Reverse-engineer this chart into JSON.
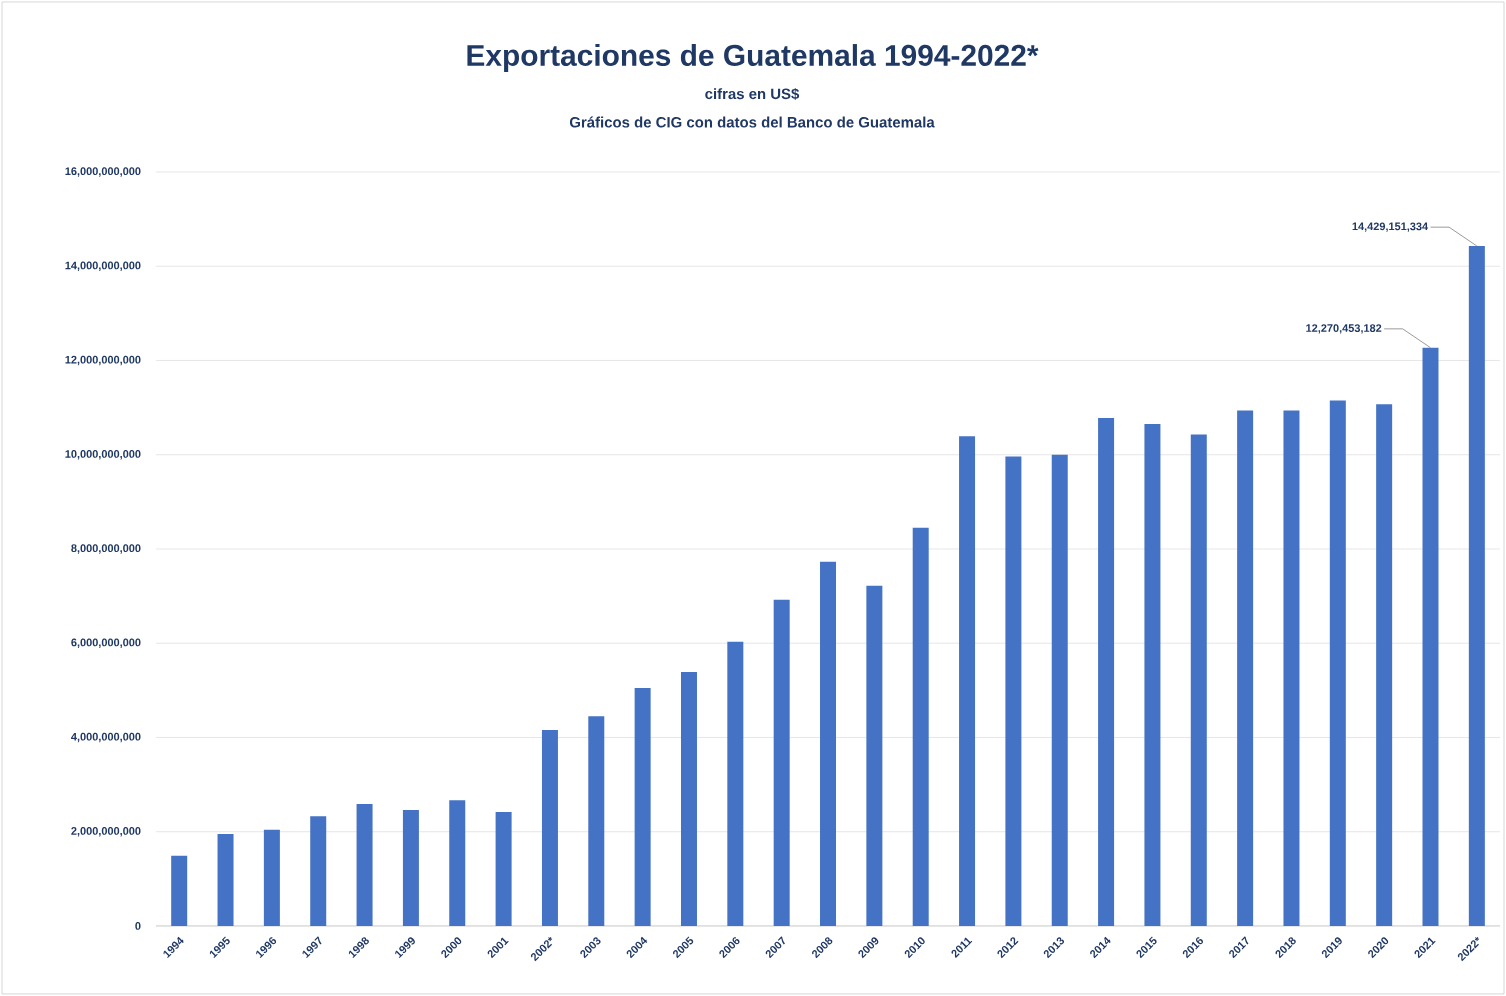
{
  "chart_data": {
    "type": "bar",
    "title": "Exportaciones de Guatemala 1994-2022*",
    "subtitle": "cifras en US$",
    "annotations": [
      "Gráficos de CIG con datos del Banco de Guatemala"
    ],
    "categories": [
      "1994",
      "1995",
      "1996",
      "1997",
      "1998",
      "1999",
      "2000",
      "2001",
      "2002*",
      "2003",
      "2004",
      "2005",
      "2006",
      "2007",
      "2008",
      "2009",
      "2010",
      "2011",
      "2012",
      "2013",
      "2014",
      "2015",
      "2016",
      "2017",
      "2018",
      "2019",
      "2020",
      "2021",
      "2022*"
    ],
    "values": [
      1490000000,
      1950000000,
      2040000000,
      2330000000,
      2590000000,
      2460000000,
      2670000000,
      2420000000,
      4160000000,
      4450000000,
      5050000000,
      5390000000,
      6030000000,
      6920000000,
      7730000000,
      7220000000,
      8450000000,
      10390000000,
      9960000000,
      10000000000,
      10780000000,
      10650000000,
      10430000000,
      10940000000,
      10940000000,
      11150000000,
      11070000000,
      12270453182,
      14429151334
    ],
    "value_labels": [
      null,
      null,
      null,
      null,
      null,
      null,
      null,
      null,
      null,
      null,
      null,
      null,
      null,
      null,
      null,
      null,
      null,
      null,
      null,
      null,
      null,
      null,
      null,
      null,
      null,
      null,
      null,
      "12,270,453,182",
      "14,429,151,334"
    ],
    "color": "#4472c4",
    "ylim": [
      0,
      16000000000
    ],
    "yticks": [
      {
        "value": 0,
        "label": "0"
      },
      {
        "value": 2000000000,
        "label": "2,000,000,000"
      },
      {
        "value": 4000000000,
        "label": "4,000,000,000"
      },
      {
        "value": 6000000000,
        "label": "6,000,000,000"
      },
      {
        "value": 8000000000,
        "label": "8,000,000,000"
      },
      {
        "value": 10000000000,
        "label": "10,000,000,000"
      },
      {
        "value": 12000000000,
        "label": "12,000,000,000"
      },
      {
        "value": 14000000000,
        "label": "14,000,000,000"
      },
      {
        "value": 16000000000,
        "label": "16,000,000,000"
      }
    ],
    "grid": "y"
  }
}
